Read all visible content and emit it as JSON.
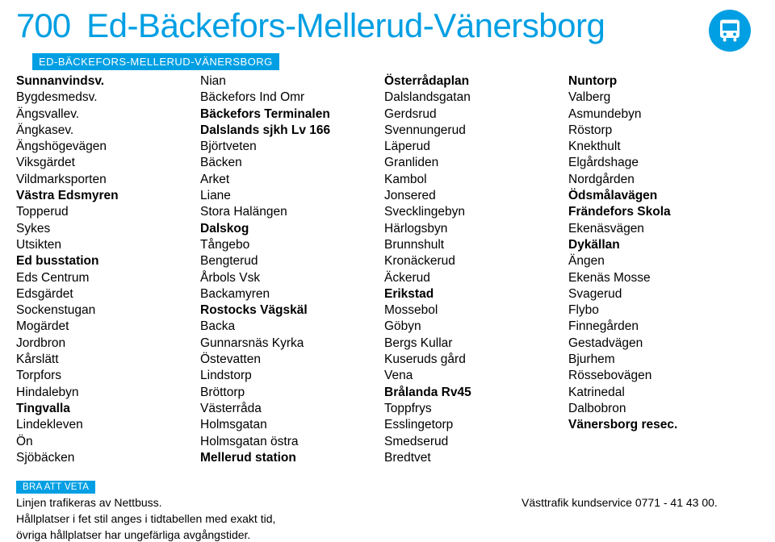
{
  "colors": {
    "brand": "#009fe3",
    "section_bg": "#009fe3",
    "section_fg": "#ffffff",
    "text": "#000000",
    "bus_icon_bg": "#009fe3",
    "bus_icon_fg": "#ffffff"
  },
  "header": {
    "route_number": "700",
    "route_title": "Ed-Bäckefors-Mellerud-Vänersborg"
  },
  "section_label": "ED-BÄCKEFORS-MELLERUD-VÄNERSBORG",
  "stops": {
    "col1": [
      {
        "name": "Sunnanvindsv.",
        "bold": true
      },
      {
        "name": "Bygdesmedsv.",
        "bold": false
      },
      {
        "name": "Ängsvallev.",
        "bold": false
      },
      {
        "name": "Ängkasev.",
        "bold": false
      },
      {
        "name": "Ängshögevägen",
        "bold": false
      },
      {
        "name": "Viksgärdet",
        "bold": false
      },
      {
        "name": "Vildmarksporten",
        "bold": false
      },
      {
        "name": "Västra Edsmyren",
        "bold": true
      },
      {
        "name": "Topperud",
        "bold": false
      },
      {
        "name": "Sykes",
        "bold": false
      },
      {
        "name": "Utsikten",
        "bold": false
      },
      {
        "name": "Ed busstation",
        "bold": true
      },
      {
        "name": "Eds Centrum",
        "bold": false
      },
      {
        "name": "Edsgärdet",
        "bold": false
      },
      {
        "name": "Sockenstugan",
        "bold": false
      },
      {
        "name": "Mogärdet",
        "bold": false
      },
      {
        "name": "Jordbron",
        "bold": false
      },
      {
        "name": "Kårslätt",
        "bold": false
      },
      {
        "name": "Torpfors",
        "bold": false
      },
      {
        "name": "Hindalebyn",
        "bold": false
      },
      {
        "name": "Tingvalla",
        "bold": true
      },
      {
        "name": "Lindekleven",
        "bold": false
      },
      {
        "name": "Ön",
        "bold": false
      },
      {
        "name": "Sjöbäcken",
        "bold": false
      }
    ],
    "col2": [
      {
        "name": "Nian",
        "bold": false
      },
      {
        "name": "Bäckefors Ind Omr",
        "bold": false
      },
      {
        "name": "Bäckefors Terminalen",
        "bold": true
      },
      {
        "name": "Dalslands sjkh Lv 166",
        "bold": true
      },
      {
        "name": "Björtveten",
        "bold": false
      },
      {
        "name": "Bäcken",
        "bold": false
      },
      {
        "name": "Arket",
        "bold": false
      },
      {
        "name": "Liane",
        "bold": false
      },
      {
        "name": "Stora Halängen",
        "bold": false
      },
      {
        "name": "Dalskog",
        "bold": true
      },
      {
        "name": "Tångebo",
        "bold": false
      },
      {
        "name": "Bengterud",
        "bold": false
      },
      {
        "name": "Årbols Vsk",
        "bold": false
      },
      {
        "name": "Backamyren",
        "bold": false
      },
      {
        "name": "Rostocks Vägskäl",
        "bold": true
      },
      {
        "name": "Backa",
        "bold": false
      },
      {
        "name": "Gunnarsnäs Kyrka",
        "bold": false
      },
      {
        "name": "Östevatten",
        "bold": false
      },
      {
        "name": "Lindstorp",
        "bold": false
      },
      {
        "name": "Bröttorp",
        "bold": false
      },
      {
        "name": "Västerråda",
        "bold": false
      },
      {
        "name": "Holmsgatan",
        "bold": false
      },
      {
        "name": "Holmsgatan östra",
        "bold": false
      },
      {
        "name": "Mellerud station",
        "bold": true
      }
    ],
    "col3": [
      {
        "name": "Österrådaplan",
        "bold": true
      },
      {
        "name": "Dalslandsgatan",
        "bold": false
      },
      {
        "name": "Gerdsrud",
        "bold": false
      },
      {
        "name": "Svennungerud",
        "bold": false
      },
      {
        "name": "Läperud",
        "bold": false
      },
      {
        "name": "Granliden",
        "bold": false
      },
      {
        "name": "Kambol",
        "bold": false
      },
      {
        "name": "Jonsered",
        "bold": false
      },
      {
        "name": "Svecklingebyn",
        "bold": false
      },
      {
        "name": "Härlogsbyn",
        "bold": false
      },
      {
        "name": "Brunnshult",
        "bold": false
      },
      {
        "name": "Kronäckerud",
        "bold": false
      },
      {
        "name": "Äckerud",
        "bold": false
      },
      {
        "name": "Erikstad",
        "bold": true
      },
      {
        "name": "Mossebol",
        "bold": false
      },
      {
        "name": "Göbyn",
        "bold": false
      },
      {
        "name": "Bergs Kullar",
        "bold": false
      },
      {
        "name": "Kuseruds gård",
        "bold": false
      },
      {
        "name": "Vena",
        "bold": false
      },
      {
        "name": "Brålanda Rv45",
        "bold": true
      },
      {
        "name": "Toppfrys",
        "bold": false
      },
      {
        "name": "Esslingetorp",
        "bold": false
      },
      {
        "name": "Smedserud",
        "bold": false
      },
      {
        "name": "Bredtvet",
        "bold": false
      }
    ],
    "col4": [
      {
        "name": "Nuntorp",
        "bold": true
      },
      {
        "name": "Valberg",
        "bold": false
      },
      {
        "name": "Asmundebyn",
        "bold": false
      },
      {
        "name": "Röstorp",
        "bold": false
      },
      {
        "name": "Knekthult",
        "bold": false
      },
      {
        "name": "Elgårdshage",
        "bold": false
      },
      {
        "name": "Nordgården",
        "bold": false
      },
      {
        "name": "Ödsmålavägen",
        "bold": true
      },
      {
        "name": "Frändefors Skola",
        "bold": true
      },
      {
        "name": "Ekenäsvägen",
        "bold": false
      },
      {
        "name": "Dykällan",
        "bold": true
      },
      {
        "name": "Ängen",
        "bold": false
      },
      {
        "name": "Ekenäs Mosse",
        "bold": false
      },
      {
        "name": "Svagerud",
        "bold": false
      },
      {
        "name": "Flybo",
        "bold": false
      },
      {
        "name": "Finnegården",
        "bold": false
      },
      {
        "name": "Gestadvägen",
        "bold": false
      },
      {
        "name": "Bjurhem",
        "bold": false
      },
      {
        "name": "Rössebovägen",
        "bold": false
      },
      {
        "name": "Katrinedal",
        "bold": false
      },
      {
        "name": "Dalbobron",
        "bold": false
      },
      {
        "name": "Vänersborg resec.",
        "bold": true
      }
    ]
  },
  "info": {
    "header_label": "BRA ATT VETA",
    "line1": "Linjen trafikeras av Nettbuss.",
    "line2": "Hållplatser i fet stil anges i tidtabellen med exakt tid,",
    "line3": "övriga hållplatser har ungefärliga avgångstider.",
    "contact": "Västtrafik kundservice 0771 - 41 43 00."
  }
}
